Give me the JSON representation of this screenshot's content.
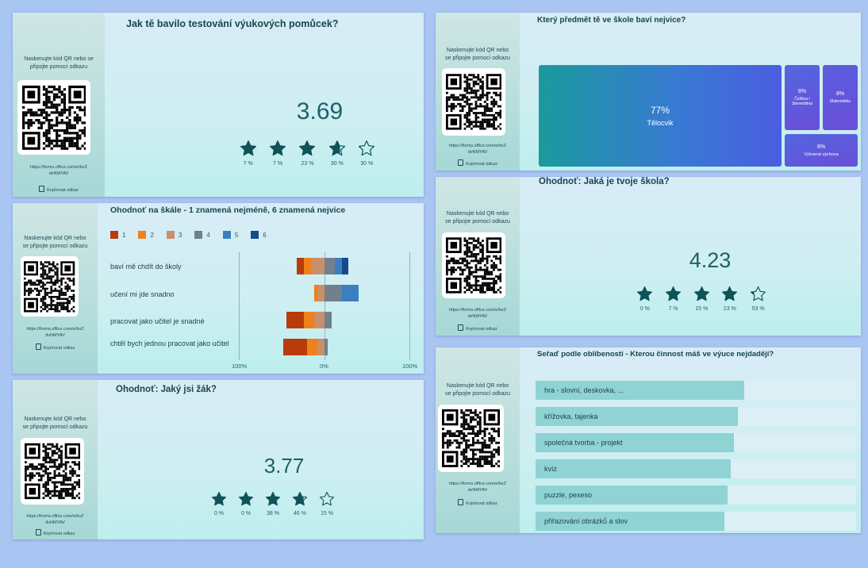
{
  "common": {
    "scan_text": "Naskenujte kód QR nebo se připojte pomocí odkazu",
    "url": "https://forms.office.com/e/bvZdvNMYAV",
    "url_line1": "https://forms.office.com/e/bvZ",
    "url_line2": "dvNMYAV",
    "copy_label": "Kopírovat odkaz"
  },
  "panel1": {
    "title": "Jak tě bavilo testování výukových pomůcek?",
    "average": "3.69",
    "rating": 3.69,
    "star_percentages": [
      "7 %",
      "7 %",
      "23 %",
      "30 %",
      "30 %"
    ]
  },
  "panel2": {
    "title": "Ohodnoť na škále - 1 znamená nejméně, 6 znamená nejvice",
    "legend": [
      "1",
      "2",
      "3",
      "4",
      "5",
      "6"
    ],
    "colors": [
      "#b83b0b",
      "#f08019",
      "#c8906a",
      "#71808c",
      "#3b7fc0",
      "#154b88"
    ],
    "axis_labels": [
      "100%",
      "0%",
      "100%"
    ],
    "questions": [
      {
        "label": "baví mě chdít do školy",
        "values": [
          8,
          8,
          16,
          12,
          8,
          8
        ]
      },
      {
        "label": "učení mi jde snadno",
        "values": [
          0,
          4,
          8,
          20,
          20,
          0
        ]
      },
      {
        "label": "pracovat jako učitel je snadné",
        "values": [
          20,
          12,
          12,
          8,
          0,
          0
        ]
      },
      {
        "label": "chtěl bych jednou pracovat jako učitel",
        "values": [
          28,
          12,
          8,
          4,
          0,
          0
        ]
      }
    ]
  },
  "panel3": {
    "title": "Ohodnoť: Jaký jsi žák?",
    "average": "3.77",
    "rating": 3.77,
    "star_percentages": [
      "0 %",
      "0 %",
      "38 %",
      "46 %",
      "15 %"
    ]
  },
  "panel4": {
    "title": "Který předmět tě ve škole baví nejvice?",
    "tiles": [
      {
        "pct": "77%",
        "label": "Tělocvik"
      },
      {
        "pct": "8%",
        "label": "Čeština / Slovenština"
      },
      {
        "pct": "8%",
        "label": "Matematika"
      },
      {
        "pct": "8%",
        "label": "Výtvarná výchova"
      }
    ]
  },
  "panel5": {
    "title": "Ohodnoť: Jaká je tvoje škola?",
    "average": "4.23",
    "rating": 4.23,
    "star_percentages": [
      "0 %",
      "7 %",
      "15 %",
      "23 %",
      "53 %"
    ]
  },
  "panel6": {
    "title": "Seřaď podle oblíbenosti - Kterou činnost máš ve výuce nejdadějí?",
    "items": [
      {
        "label": "hra - slovní, deskovka, ...",
        "score": 0.65
      },
      {
        "label": "křížovka, tajenka",
        "score": 0.63
      },
      {
        "label": "společná tvorba - projekt",
        "score": 0.62
      },
      {
        "label": "kvíz",
        "score": 0.61
      },
      {
        "label": "puzzle, pexeso",
        "score": 0.6
      },
      {
        "label": "přiřazování obrázků a slov",
        "score": 0.59
      }
    ]
  }
}
